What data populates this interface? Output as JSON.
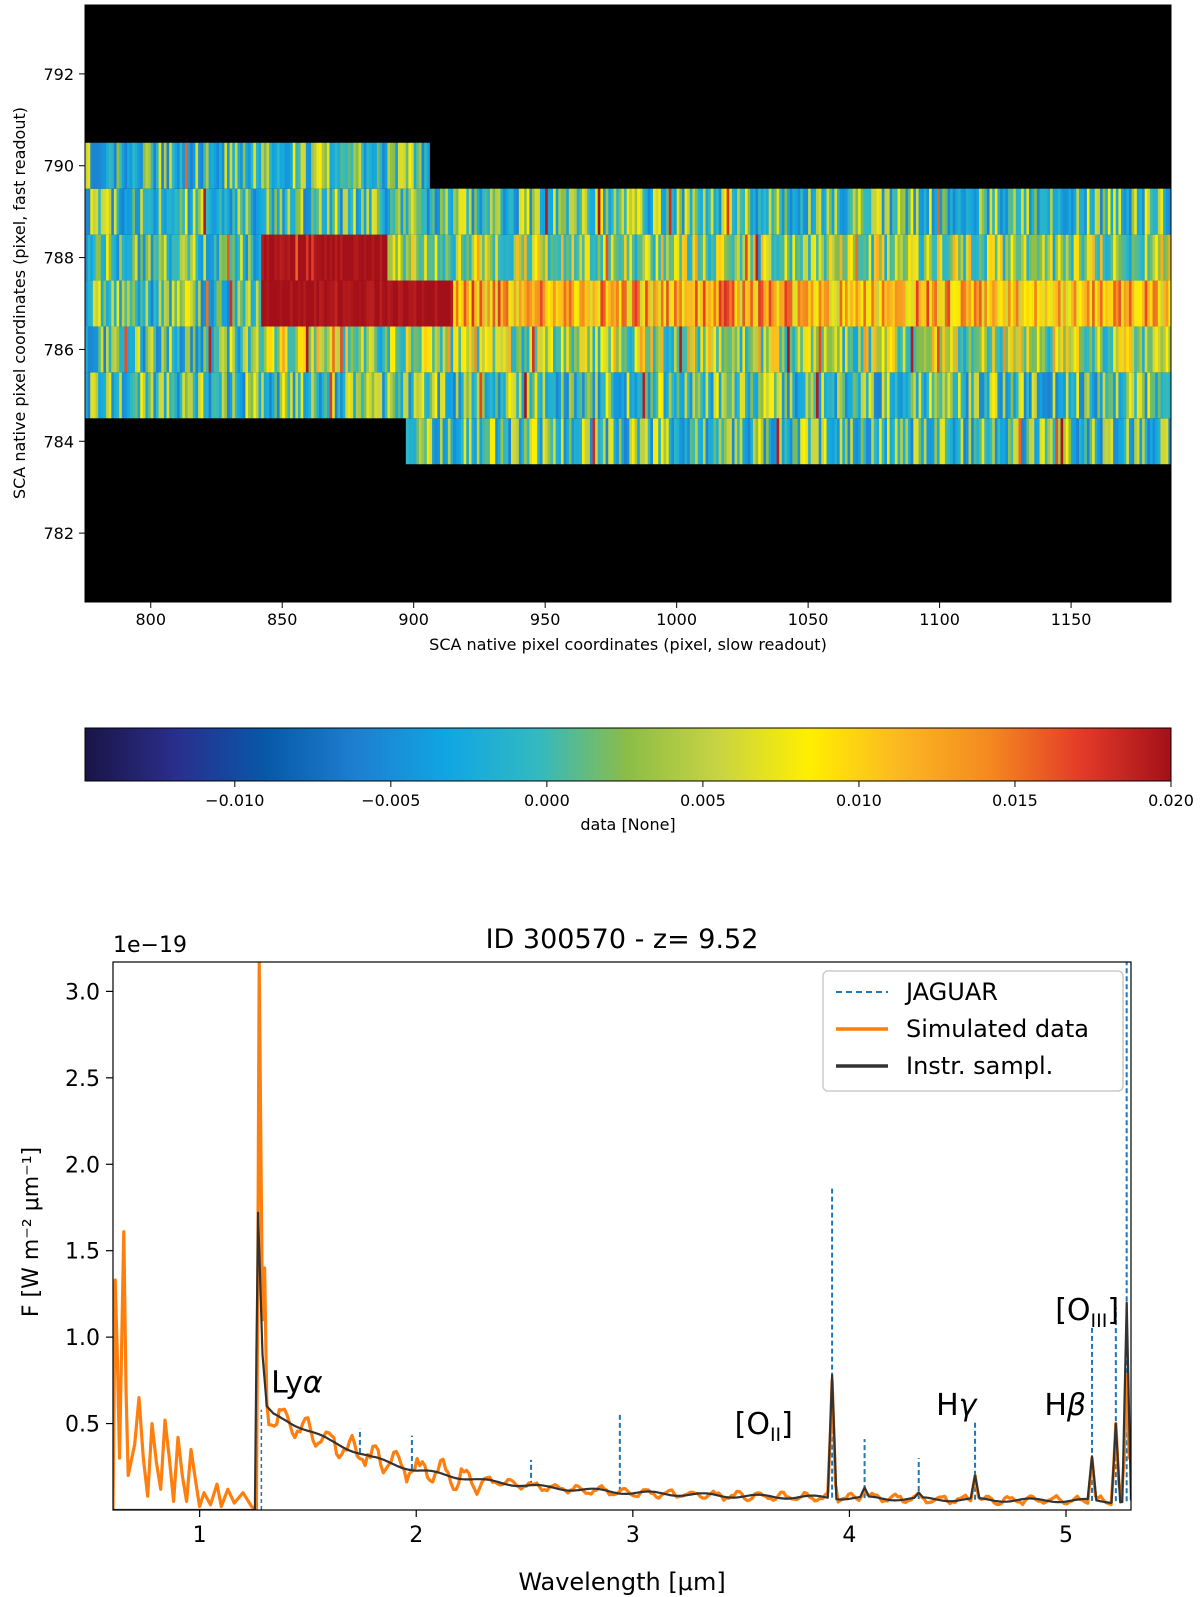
{
  "chart_data": [
    {
      "type": "heatmap",
      "title": "",
      "xlabel": "SCA native pixel coordinates (pixel, slow readout)",
      "ylabel": "SCA native pixel coordinates (pixel, fast readout)",
      "xlim": [
        775,
        1188
      ],
      "ylim": [
        780.5,
        793.5
      ],
      "x_ticks": [
        800,
        850,
        900,
        950,
        1000,
        1050,
        1100,
        1150
      ],
      "y_ticks": [
        782,
        784,
        786,
        788,
        790,
        792
      ],
      "rows": [
        {
          "y": 784,
          "x_start": 897,
          "x_end": 1188
        },
        {
          "y": 785,
          "x_start": 775,
          "x_end": 1188
        },
        {
          "y": 786,
          "x_start": 775,
          "x_end": 1188
        },
        {
          "y": 787,
          "x_start": 775,
          "x_end": 1188
        },
        {
          "y": 788,
          "x_start": 775,
          "x_end": 1188
        },
        {
          "y": 789,
          "x_start": 775,
          "x_end": 1188
        },
        {
          "y": 790,
          "x_start": 775,
          "x_end": 906
        }
      ],
      "trace": {
        "y": 787,
        "x_start": 842,
        "x_end": 1188,
        "peak_end": 915
      },
      "colorbar": {
        "label": "data [None]",
        "min": -0.0148,
        "max": 0.02,
        "ticks": [
          "−0.010",
          "−0.005",
          "0.000",
          "0.005",
          "0.010",
          "0.015",
          "0.020"
        ],
        "tick_values": [
          -0.01,
          -0.005,
          0,
          0.005,
          0.01,
          0.015,
          0.02
        ],
        "colormap": [
          "#1a1446",
          "#2a2e8c",
          "#0858a8",
          "#1e7fd0",
          "#10a6e3",
          "#32b9c1",
          "#8cbd46",
          "#c8d442",
          "#ffef00",
          "#fbb822",
          "#f4891f",
          "#e43b29",
          "#a31019"
        ]
      }
    },
    {
      "type": "line",
      "title": "ID 300570 - z= 9.52",
      "xlabel": "Wavelength [μm]",
      "ylabel": "F [W m⁻² μm⁻¹]",
      "y_scale_label": "1e−19",
      "xlim": [
        0.6,
        5.3
      ],
      "ylim": [
        0,
        3.17
      ],
      "x_ticks": [
        1,
        2,
        3,
        4,
        5
      ],
      "y_ticks": [
        0.5,
        1.0,
        1.5,
        2.0,
        2.5,
        3.0
      ],
      "y_tick_labels": [
        "0.5",
        "1.0",
        "1.5",
        "2.0",
        "2.5",
        "3.0"
      ],
      "legend": {
        "position": "top-right",
        "entries": [
          {
            "label": "JAGUAR",
            "color": "#1f77b4",
            "style": "dashed"
          },
          {
            "label": "Simulated data",
            "color": "#ff7f0e",
            "style": "solid"
          },
          {
            "label": "Instr. sampl.",
            "color": "#333333",
            "style": "solid"
          }
        ]
      },
      "continuum": [
        [
          1.28,
          0.58
        ],
        [
          1.4,
          0.52
        ],
        [
          1.6,
          0.4
        ],
        [
          1.8,
          0.3
        ],
        [
          2.0,
          0.23
        ],
        [
          2.3,
          0.17
        ],
        [
          2.6,
          0.13
        ],
        [
          3.0,
          0.1
        ],
        [
          3.5,
          0.08
        ],
        [
          4.0,
          0.07
        ],
        [
          4.5,
          0.06
        ],
        [
          5.0,
          0.055
        ],
        [
          5.3,
          0.05
        ]
      ],
      "series": [
        {
          "name": "JAGUAR",
          "color": "#1f77b4",
          "lines": [
            [
              1.74,
              0.47
            ],
            [
              1.98,
              0.43
            ],
            [
              2.53,
              0.29
            ],
            [
              2.94,
              0.56
            ],
            [
              3.92,
              1.87
            ],
            [
              4.07,
              0.41
            ],
            [
              4.32,
              0.3
            ],
            [
              4.58,
              0.52
            ],
            [
              5.12,
              1.07
            ],
            [
              5.23,
              1.17
            ],
            [
              5.28,
              3.17
            ]
          ]
        },
        {
          "name": "Simulated data",
          "color": "#ff7f0e",
          "lya_peak": [
            1.275,
            3.17
          ],
          "lya_shoulder": [
            1.3,
            1.4
          ],
          "short_wave": [
            [
              0.6,
              0.0
            ],
            [
              0.61,
              1.33
            ],
            [
              0.62,
              0.9
            ],
            [
              0.63,
              0.3
            ],
            [
              0.65,
              1.61
            ],
            [
              0.66,
              0.7
            ],
            [
              0.67,
              0.2
            ],
            [
              0.7,
              0.38
            ],
            [
              0.72,
              0.65
            ],
            [
              0.74,
              0.3
            ],
            [
              0.76,
              0.08
            ],
            [
              0.78,
              0.5
            ],
            [
              0.8,
              0.28
            ],
            [
              0.82,
              0.12
            ],
            [
              0.84,
              0.52
            ],
            [
              0.86,
              0.3
            ],
            [
              0.88,
              0.05
            ],
            [
              0.9,
              0.42
            ],
            [
              0.92,
              0.2
            ],
            [
              0.94,
              0.05
            ],
            [
              0.96,
              0.35
            ],
            [
              0.98,
              0.18
            ],
            [
              1.0,
              0.02
            ],
            [
              1.02,
              0.1
            ],
            [
              1.05,
              0.03
            ],
            [
              1.08,
              0.15
            ],
            [
              1.1,
              0.02
            ],
            [
              1.13,
              0.12
            ],
            [
              1.16,
              0.04
            ],
            [
              1.2,
              0.1
            ],
            [
              1.24,
              0.02
            ],
            [
              1.26,
              0.0
            ]
          ],
          "lines": [
            [
              3.92,
              0.75
            ],
            [
              4.07,
              0.12
            ],
            [
              4.32,
              0.1
            ],
            [
              4.58,
              0.2
            ],
            [
              5.12,
              0.3
            ],
            [
              5.23,
              0.5
            ],
            [
              5.28,
              0.78
            ]
          ]
        },
        {
          "name": "Instr. sampl.",
          "color": "#333333",
          "lya_peak": [
            1.27,
            1.72
          ],
          "lines": [
            [
              3.92,
              0.78
            ],
            [
              4.07,
              0.13
            ],
            [
              4.32,
              0.1
            ],
            [
              4.58,
              0.2
            ],
            [
              5.12,
              0.31
            ],
            [
              5.23,
              0.5
            ],
            [
              5.28,
              1.2
            ]
          ]
        }
      ],
      "annotations": [
        {
          "text": "Ly",
          "greek": "α",
          "x": 1.33,
          "y": 0.68
        },
        {
          "text": "[O",
          "sub": "II",
          "close": "]",
          "x": 3.47,
          "y": 0.44
        },
        {
          "text": "H",
          "greek": "γ",
          "x": 4.4,
          "y": 0.55
        },
        {
          "text": "H",
          "greek": "β",
          "x": 4.9,
          "y": 0.55
        },
        {
          "text": "[O",
          "sub": "III",
          "close": "]",
          "x": 4.95,
          "y": 1.1
        }
      ]
    }
  ]
}
